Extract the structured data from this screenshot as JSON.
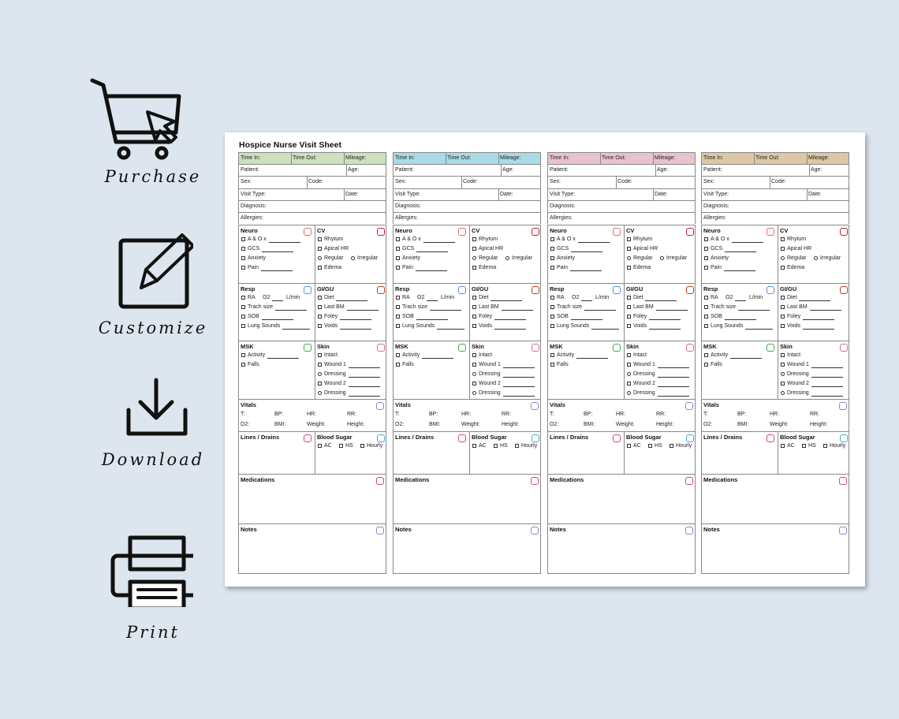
{
  "sidebar": [
    {
      "label": "Purchase"
    },
    {
      "label": "Customize"
    },
    {
      "label": "Download"
    },
    {
      "label": "Print"
    }
  ],
  "sheet": {
    "title": "Hospice Nurse Visit Sheet",
    "columns": [
      {
        "color": "#cfe0bd"
      },
      {
        "color": "#a9dbe6"
      },
      {
        "color": "#e8c3cb"
      },
      {
        "color": "#dcc8a4"
      }
    ],
    "header": [
      [
        "Time In:",
        "Time Out:",
        "Mileage:"
      ],
      [
        "Patient:",
        "Age:"
      ],
      [
        "Sex:",
        "Code:"
      ],
      [
        "Visit Type:",
        "Date:"
      ],
      [
        "Diagnosis:"
      ],
      [
        "Allergies:"
      ]
    ],
    "sections": [
      [
        {
          "title": "Neuro",
          "icon": "#e06a6a",
          "items": [
            [
              {
                "mark": "box",
                "text": "A & O x",
                "blank": true
              }
            ],
            [
              {
                "mark": "box",
                "text": "GCS",
                "blank": true
              }
            ],
            [
              {
                "mark": "box",
                "text": "Anxiety"
              }
            ],
            [
              {
                "mark": "box",
                "text": "Pain",
                "blank": true
              }
            ]
          ]
        },
        {
          "title": "CV",
          "icon": "#b8232f",
          "items": [
            [
              {
                "mark": "box",
                "text": "Rhytum"
              }
            ],
            [
              {
                "mark": "box",
                "text": "Apical HR"
              }
            ],
            [
              {
                "mark": "circle",
                "text": "Regular"
              },
              {
                "mark": "circle",
                "text": "Irregular"
              }
            ],
            [
              {
                "mark": "box",
                "text": "Edema"
              }
            ]
          ]
        }
      ],
      [
        {
          "title": "Resp",
          "icon": "#5b8fd6",
          "items": [
            [
              {
                "mark": "box",
                "text": "RA"
              },
              {
                "text": "O2",
                "blank": true
              },
              {
                "text": "L/min"
              }
            ],
            [
              {
                "mark": "box",
                "text": "Trach size",
                "blank": true
              }
            ],
            [
              {
                "mark": "box",
                "text": "SOB",
                "blank": true
              }
            ],
            [
              {
                "mark": "box",
                "text": "Lung Sounds",
                "blank": true
              }
            ]
          ]
        },
        {
          "title": "GI/GU",
          "icon": "#c0392b",
          "items": [
            [
              {
                "mark": "box",
                "text": "Diet",
                "blank": true
              }
            ],
            [
              {
                "mark": "box",
                "text": "Last BM",
                "blank": true
              }
            ],
            [
              {
                "mark": "box",
                "text": "Foley",
                "blank": true
              }
            ],
            [
              {
                "mark": "box",
                "text": "Voids",
                "blank": true
              }
            ]
          ]
        }
      ],
      [
        {
          "title": "MSK",
          "icon": "#3fae49",
          "items": [
            [
              {
                "mark": "box",
                "text": "Activity",
                "blank": true
              }
            ],
            [
              {
                "mark": "box",
                "text": "Falls"
              }
            ]
          ]
        },
        {
          "title": "Skin",
          "icon": "#d96aa7",
          "items": [
            [
              {
                "mark": "box",
                "text": "Intact"
              }
            ],
            [
              {
                "mark": "box",
                "text": "Wound 1",
                "blank": true
              }
            ],
            [
              {
                "mark": "circle",
                "text": "Dressing",
                "blank": true
              }
            ],
            [
              {
                "mark": "box",
                "text": "Wound 2",
                "blank": true
              }
            ],
            [
              {
                "mark": "circle",
                "text": "Dressing",
                "blank": true
              }
            ]
          ]
        }
      ],
      [
        {
          "title": "Vitals",
          "icon": "#9b7fd4",
          "fields": [
            [
              "T:",
              "BP:",
              "HR:",
              "RR:"
            ],
            [
              "O2:",
              "BMI:",
              "Weight:",
              "Height:"
            ]
          ]
        }
      ],
      [
        {
          "title": "Lines / Drains",
          "icon": "#d6457a",
          "items": []
        },
        {
          "title": "Blood Sugar",
          "icon": "#3fb3c9",
          "items": [
            [
              {
                "mark": "box",
                "text": "AC"
              },
              {
                "mark": "box",
                "text": "HS"
              },
              {
                "mark": "box",
                "text": "Hourly"
              }
            ]
          ]
        }
      ],
      [
        {
          "title": "Medications",
          "icon": "#d6457a",
          "items": []
        }
      ],
      [
        {
          "title": "Notes",
          "icon": "#9b7fd4",
          "items": []
        }
      ]
    ]
  }
}
